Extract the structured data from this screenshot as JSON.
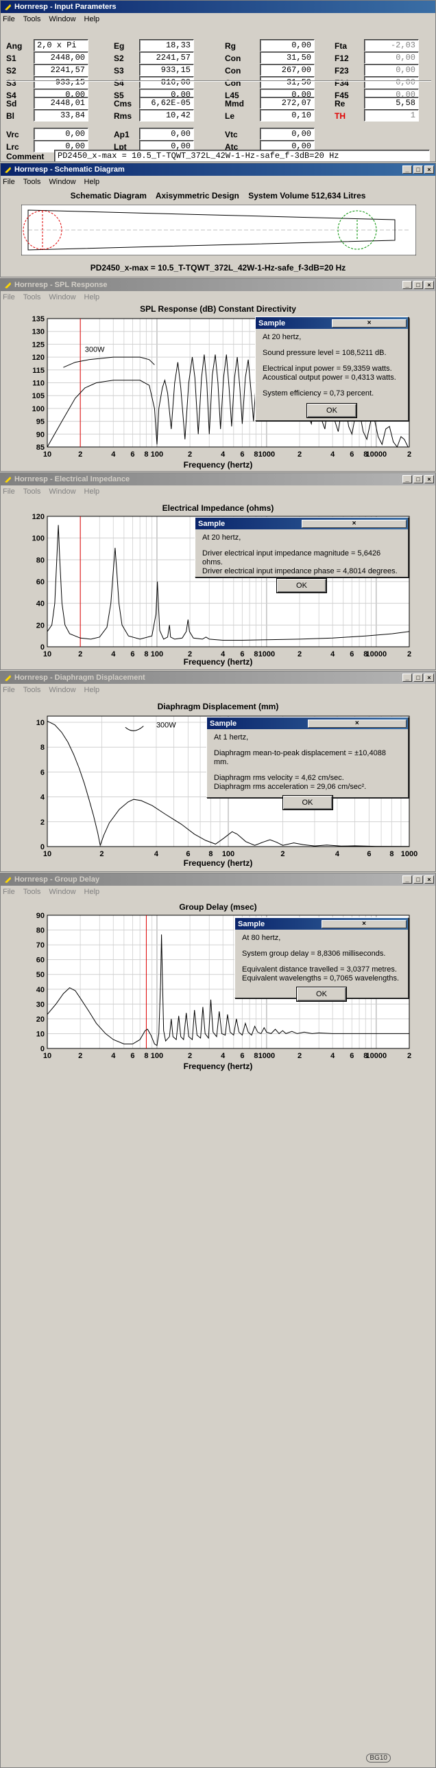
{
  "input": {
    "title": "Hornresp - Input Parameters",
    "menu": [
      "File",
      "Tools",
      "Window",
      "Help"
    ],
    "rows1": [
      [
        {
          "l": "Ang",
          "v": "2,0 x Pi",
          "a": true
        },
        {
          "l": "Eg",
          "v": "18,33",
          "a": true
        },
        {
          "l": "Rg",
          "v": "0,00",
          "a": true
        },
        {
          "l": "Fta",
          "v": "-2,03",
          "a": false
        }
      ],
      [
        {
          "l": "S1",
          "v": "2448,00",
          "a": true
        },
        {
          "l": "S2",
          "v": "2241,57",
          "a": true
        },
        {
          "l": "Con",
          "v": "31,50",
          "a": true
        },
        {
          "l": "F12",
          "v": "0,00",
          "a": false
        }
      ],
      [
        {
          "l": "S2",
          "v": "2241,57",
          "a": true
        },
        {
          "l": "S3",
          "v": "933,15",
          "a": true
        },
        {
          "l": "Con",
          "v": "267,00",
          "a": true
        },
        {
          "l": "F23",
          "v": "0,00",
          "a": false
        }
      ],
      [
        {
          "l": "S3",
          "v": "933,15",
          "a": true
        },
        {
          "l": "S4",
          "v": "816,00",
          "a": true
        },
        {
          "l": "Con",
          "v": "31,50",
          "a": true
        },
        {
          "l": "F34",
          "v": "0,00",
          "a": false
        }
      ],
      [
        {
          "l": "S4",
          "v": "0,00",
          "a": true
        },
        {
          "l": "S5",
          "v": "0,00",
          "a": true
        },
        {
          "l": "L45",
          "v": "0,00",
          "a": true
        },
        {
          "l": "F45",
          "v": "0,00",
          "a": false
        }
      ]
    ],
    "rows2": [
      [
        {
          "l": "Sd",
          "v": "2448,01",
          "a": true
        },
        {
          "l": "Cms",
          "v": "6,62E-05",
          "a": true
        },
        {
          "l": "Mmd",
          "v": "272,07",
          "a": true
        },
        {
          "l": "Re",
          "v": "5,58",
          "a": true
        }
      ],
      [
        {
          "l": "Bl",
          "v": "33,84",
          "a": true
        },
        {
          "l": "Rms",
          "v": "10,42",
          "a": true
        },
        {
          "l": "Le",
          "v": "0,10",
          "a": true
        },
        {
          "l": "TH",
          "v": "1",
          "a": false,
          "red": true
        }
      ],
      [
        {
          "l": "Vrc",
          "v": "0,00",
          "a": true
        },
        {
          "l": "Ap1",
          "v": "0,00",
          "a": true
        },
        {
          "l": "Vtc",
          "v": "0,00",
          "a": true
        }
      ],
      [
        {
          "l": "Lrc",
          "v": "0,00",
          "a": true
        },
        {
          "l": "Lpt",
          "v": "0,00",
          "a": true
        },
        {
          "l": "Atc",
          "v": "0,00",
          "a": true
        }
      ]
    ],
    "comment_label": "Comment",
    "comment": "PD2450_x-max = 10.5_T-TQWT_372L_42W-1-Hz-safe_f-3dB=20 Hz"
  },
  "schematic": {
    "title": "Hornresp - Schematic Diagram",
    "menu": [
      "File",
      "Tools",
      "Window",
      "Help"
    ],
    "header": "Schematic Diagram    Axisymmetric Design    System Volume 512,634 Litres",
    "caption": "PD2450_x-max = 10.5_T-TQWT_372L_42W-1-Hz-safe_f-3dB=20 Hz"
  },
  "spl": {
    "title": "Hornresp - SPL Response",
    "menu": [
      "File",
      "Tools",
      "Window",
      "Help"
    ],
    "chart_title": "SPL Response (dB)   Constant Directivity",
    "xlabel": "Frequency (hertz)",
    "yticks": [
      "135",
      "130",
      "125",
      "120",
      "115",
      "110",
      "105",
      "100",
      "95",
      "90",
      "85"
    ],
    "xticks": [
      "10",
      "2",
      "4",
      "6",
      "8",
      "100",
      "2",
      "4",
      "6",
      "8",
      "1000",
      "2",
      "4",
      "6",
      "8",
      "10000",
      "2"
    ],
    "annotation": "300W",
    "dialog": {
      "title": "Sample",
      "lines": [
        "At 20 hertz,",
        "",
        "Sound pressure level = 108,5211 dB.",
        "",
        "Electrical input power = 59,3359 watts.",
        "Acoustical output power = 0,4313 watts.",
        "",
        "System efficiency = 0,73 percent."
      ],
      "ok": "OK"
    }
  },
  "imp": {
    "title": "Hornresp - Electrical Impedance",
    "menu": [
      "File",
      "Tools",
      "Window",
      "Help"
    ],
    "chart_title": "Electrical Impedance (ohms)",
    "xlabel": "Frequency (hertz)",
    "yticks": [
      "120",
      "100",
      "80",
      "60",
      "40",
      "20",
      "0"
    ],
    "xticks": [
      "10",
      "2",
      "4",
      "6",
      "8",
      "100",
      "2",
      "4",
      "6",
      "8",
      "1000",
      "2",
      "4",
      "6",
      "8",
      "10000",
      "2"
    ],
    "dialog": {
      "title": "Sample",
      "lines": [
        "At 20 hertz,",
        "",
        "Driver electrical input impedance magnitude = 5,6426 ohms.",
        "Driver electrical input impedance phase = 4,8014 degrees."
      ],
      "ok": "OK"
    }
  },
  "disp": {
    "title": "Hornresp - Diaphragm Displacement",
    "menu": [
      "File",
      "Tools",
      "Window",
      "Help"
    ],
    "chart_title": "Diaphragm Displacement (mm)",
    "xlabel": "Frequency (hertz)",
    "yticks": [
      "10",
      "8",
      "6",
      "4",
      "2",
      "0"
    ],
    "xticks": [
      "10",
      "2",
      "4",
      "6",
      "8",
      "100",
      "2",
      "4",
      "6",
      "8",
      "1000"
    ],
    "annotation": "300W",
    "dialog": {
      "title": "Sample",
      "lines": [
        "At 1 hertz,",
        "",
        "Diaphragm mean-to-peak displacement = ±10,4088 mm.",
        "",
        "Diaphragm rms velocity = 4,62 cm/sec.",
        "Diaphragm rms acceleration = 29,06 cm/sec²."
      ],
      "ok": "OK"
    }
  },
  "gd": {
    "title": "Hornresp - Group Delay",
    "menu": [
      "File",
      "Tools",
      "Window",
      "Help"
    ],
    "chart_title": "Group Delay (msec)",
    "xlabel": "Frequency (hertz)",
    "yticks": [
      "90",
      "80",
      "70",
      "60",
      "50",
      "40",
      "30",
      "20",
      "10",
      "0"
    ],
    "xticks": [
      "10",
      "2",
      "4",
      "6",
      "8",
      "100",
      "2",
      "4",
      "6",
      "8",
      "1000",
      "2",
      "4",
      "6",
      "8",
      "10000",
      "2"
    ],
    "dialog": {
      "title": "Sample",
      "lines": [
        "At 80 hertz,",
        "",
        "System group delay = 8,8306 milliseconds.",
        "",
        "Equivalent distance travelled = 3,0377 metres.",
        "Equivalent wavelengths = 0,7065 wavelengths."
      ],
      "ok": "OK"
    }
  },
  "watermark": "BG10"
}
